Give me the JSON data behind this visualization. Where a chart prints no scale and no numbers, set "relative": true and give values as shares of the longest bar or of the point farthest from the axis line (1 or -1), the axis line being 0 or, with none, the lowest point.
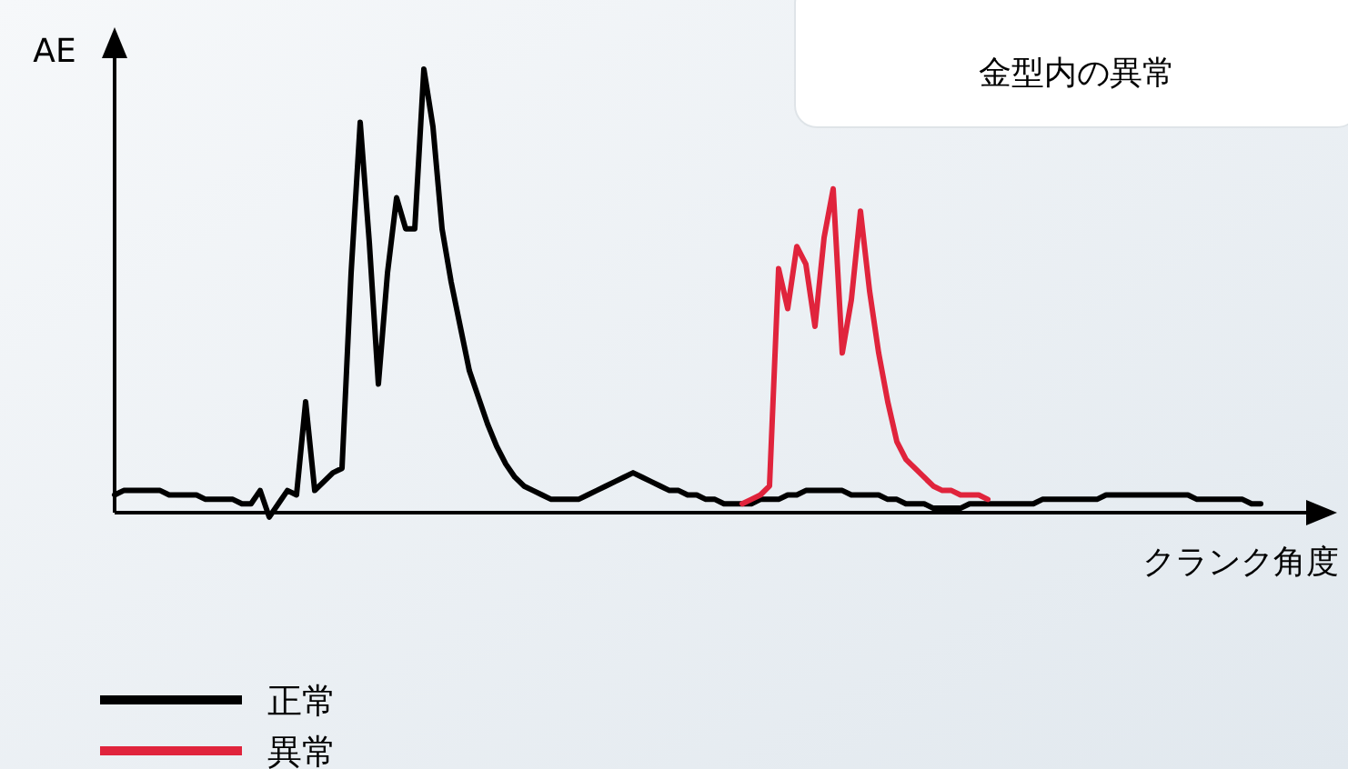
{
  "chart_data": {
    "type": "line",
    "relative": true,
    "xlabel": "クランク角度",
    "ylabel": "AE",
    "annotations": [
      "金型内の異常"
    ],
    "legend": "bottom left",
    "categories": [
      null,
      null,
      null,
      null,
      null,
      null,
      null,
      null,
      null,
      null,
      null,
      null,
      null,
      null,
      null,
      null,
      null,
      null,
      null,
      null,
      null,
      null,
      null,
      null,
      null,
      null,
      null,
      null,
      null,
      null,
      null,
      null,
      null,
      null,
      null,
      null,
      null,
      null,
      null,
      null,
      null,
      null,
      null,
      null,
      null,
      null,
      null,
      null,
      null,
      null,
      null,
      null,
      null,
      null,
      null,
      null,
      null,
      null,
      null,
      null,
      null,
      null,
      null,
      null,
      null,
      null,
      null,
      null,
      null,
      null,
      null,
      null,
      null,
      null,
      null,
      null,
      null,
      null,
      null,
      null,
      null,
      null,
      null,
      null,
      null,
      null,
      null,
      null,
      null,
      null,
      null,
      null,
      null,
      null,
      null,
      null,
      null,
      null,
      null,
      null,
      null,
      null,
      null,
      null,
      null,
      null,
      null,
      null,
      null,
      null,
      null,
      null,
      null,
      null,
      null,
      null,
      null,
      null,
      null,
      null,
      null,
      null,
      null,
      null,
      null,
      null,
      null
    ],
    "series": [
      {
        "name": "正常",
        "color": "#000000",
        "values": [
          0.04,
          0.05,
          0.05,
          0.05,
          0.05,
          0.05,
          0.04,
          0.04,
          0.04,
          0.04,
          0.03,
          0.03,
          0.03,
          0.03,
          0.02,
          0.02,
          0.05,
          -0.01,
          0.02,
          0.05,
          0.04,
          0.25,
          0.05,
          0.07,
          0.09,
          0.1,
          0.54,
          0.88,
          0.61,
          0.29,
          0.54,
          0.71,
          0.64,
          0.64,
          1,
          0.87,
          0.64,
          0.52,
          0.42,
          0.32,
          0.26,
          0.2,
          0.15,
          0.11,
          0.08,
          0.06,
          0.05,
          0.04,
          0.03,
          0.03,
          0.03,
          0.03,
          0.04,
          0.05,
          0.06,
          0.07,
          0.08,
          0.09,
          0.08,
          0.07,
          0.06,
          0.05,
          0.05,
          0.04,
          0.04,
          0.03,
          0.03,
          0.02,
          0.02,
          0.02,
          0.02,
          0.03,
          0.03,
          0.03,
          0.04,
          0.04,
          0.05,
          0.05,
          0.05,
          0.05,
          0.05,
          0.04,
          0.04,
          0.04,
          0.04,
          0.03,
          0.03,
          0.02,
          0.02,
          0.02,
          0.01,
          0.01,
          0.01,
          0.01,
          0.02,
          0.02,
          0.02,
          0.02,
          0.02,
          0.02,
          0.02,
          0.02,
          0.03,
          0.03,
          0.03,
          0.03,
          0.03,
          0.03,
          0.03,
          0.04,
          0.04,
          0.04,
          0.04,
          0.04,
          0.04,
          0.04,
          0.04,
          0.04,
          0.04,
          0.03,
          0.03,
          0.03,
          0.03,
          0.03,
          0.03,
          0.02,
          0.02
        ]
      },
      {
        "name": "異常",
        "color": "#e0243c",
        "values": [
          null,
          null,
          null,
          null,
          null,
          null,
          null,
          null,
          null,
          null,
          null,
          null,
          null,
          null,
          null,
          null,
          null,
          null,
          null,
          null,
          null,
          null,
          null,
          null,
          null,
          null,
          null,
          null,
          null,
          null,
          null,
          null,
          null,
          null,
          null,
          null,
          null,
          null,
          null,
          null,
          null,
          null,
          null,
          null,
          null,
          null,
          null,
          null,
          null,
          null,
          null,
          null,
          null,
          null,
          null,
          null,
          null,
          null,
          null,
          null,
          null,
          null,
          null,
          null,
          null,
          null,
          null,
          null,
          null,
          0.02,
          0.03,
          0.04,
          0.06,
          0.55,
          0.46,
          0.6,
          0.56,
          0.42,
          0.62,
          0.73,
          0.36,
          0.48,
          0.68,
          0.5,
          0.36,
          0.25,
          0.16,
          0.12,
          0.1,
          0.08,
          0.06,
          0.05,
          0.05,
          0.04,
          0.04,
          0.04,
          0.03,
          null,
          null,
          null,
          null,
          null,
          null,
          null,
          null,
          null,
          null,
          null,
          null,
          null,
          null,
          null,
          null,
          null,
          null,
          null,
          null,
          null,
          null,
          null,
          null,
          null,
          null,
          null,
          null,
          null,
          null
        ]
      }
    ]
  }
}
